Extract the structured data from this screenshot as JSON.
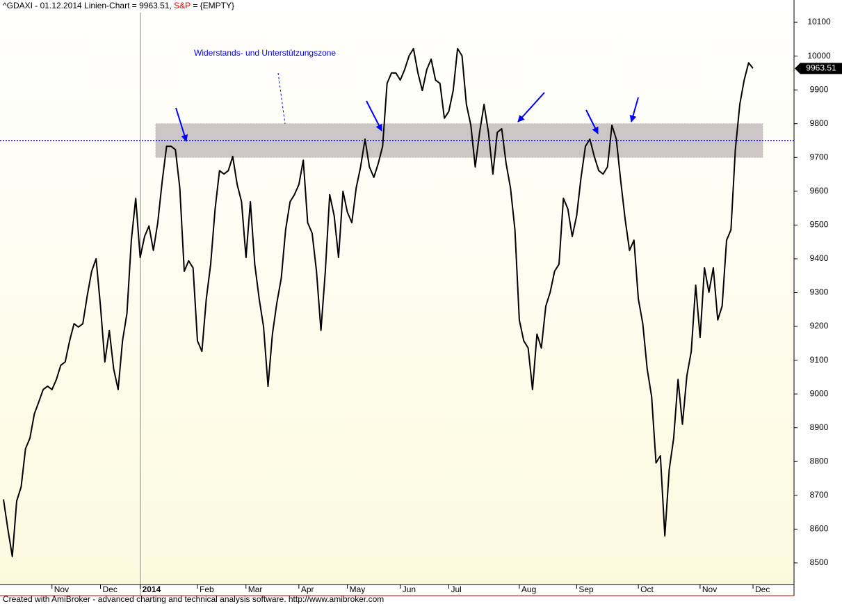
{
  "chart_data": {
    "type": "line",
    "title": "^GDAXI - 01.12.2014 Linien-Chart  =",
    "last_value": 9963.51,
    "separator": ",",
    "indicator_label": "S&P",
    "indicator_value": "= {EMPTY}",
    "annotation": "Widerstands- und Unterstützungszone",
    "zone": [
      9700,
      9800
    ],
    "level": 9750,
    "footer": "Created with AmiBroker - advanced charting and technical analysis software. http://www.amibroker.com",
    "color": "#000000",
    "ylim": [
      8436,
      10166
    ],
    "yticks": [
      8500,
      8600,
      8700,
      8800,
      8900,
      9000,
      9100,
      9200,
      9300,
      9400,
      9500,
      9600,
      9700,
      9800,
      9900,
      10000,
      10100
    ],
    "categories": [
      null,
      null,
      null,
      null,
      null,
      null,
      null,
      null,
      null,
      null,
      null,
      "Nov",
      null,
      null,
      null,
      null,
      null,
      null,
      null,
      null,
      null,
      null,
      "Dec",
      null,
      null,
      null,
      null,
      null,
      null,
      null,
      null,
      "2014",
      null,
      null,
      null,
      null,
      null,
      null,
      null,
      null,
      null,
      null,
      null,
      null,
      "Feb",
      null,
      null,
      null,
      null,
      null,
      null,
      null,
      null,
      null,
      null,
      "Mar",
      null,
      null,
      null,
      null,
      null,
      null,
      null,
      null,
      null,
      null,
      null,
      "Apr",
      null,
      null,
      null,
      null,
      null,
      null,
      null,
      null,
      null,
      null,
      "May",
      null,
      null,
      null,
      null,
      null,
      null,
      null,
      null,
      null,
      null,
      null,
      "Jun",
      null,
      null,
      null,
      null,
      null,
      null,
      null,
      null,
      null,
      null,
      "Jul",
      null,
      null,
      null,
      null,
      null,
      null,
      null,
      null,
      null,
      null,
      null,
      null,
      null,
      null,
      null,
      "Aug",
      null,
      null,
      null,
      null,
      null,
      null,
      null,
      null,
      null,
      null,
      null,
      null,
      "Sep",
      null,
      null,
      null,
      null,
      null,
      null,
      null,
      null,
      null,
      null,
      null,
      null,
      null,
      "Oct",
      null,
      null,
      null,
      null,
      null,
      null,
      null,
      null,
      null,
      null,
      null,
      null,
      null,
      "Nov",
      null,
      null,
      null,
      null,
      null,
      null,
      null,
      null,
      null,
      null,
      null,
      "Dec"
    ],
    "values": [
      8688,
      8600,
      8519,
      8683,
      8725,
      8838,
      8869,
      8941,
      8976,
      9013,
      9023,
      9013,
      9043,
      9085,
      9095,
      9157,
      9208,
      9198,
      9208,
      9291,
      9363,
      9400,
      9260,
      9095,
      9188,
      9074,
      9013,
      9157,
      9239,
      9455,
      9579,
      9404,
      9466,
      9497,
      9425,
      9507,
      9630,
      9733,
      9733,
      9723,
      9610,
      9363,
      9394,
      9373,
      9157,
      9126,
      9281,
      9384,
      9548,
      9661,
      9651,
      9661,
      9703,
      9620,
      9569,
      9404,
      9569,
      9384,
      9281,
      9198,
      9023,
      9177,
      9270,
      9342,
      9486,
      9569,
      9590,
      9620,
      9692,
      9507,
      9476,
      9363,
      9188,
      9363,
      9590,
      9528,
      9404,
      9600,
      9538,
      9507,
      9610,
      9672,
      9754,
      9672,
      9641,
      9682,
      9733,
      9919,
      9950,
      9950,
      9929,
      9960,
      10001,
      10022,
      9950,
      9898,
      9960,
      9991,
      9929,
      9919,
      9816,
      9836,
      9898,
      10022,
      10001,
      9857,
      9795,
      9672,
      9774,
      9857,
      9774,
      9651,
      9774,
      9785,
      9682,
      9610,
      9486,
      9219,
      9157,
      9136,
      9013,
      9177,
      9136,
      9260,
      9301,
      9363,
      9384,
      9579,
      9548,
      9466,
      9528,
      9641,
      9733,
      9754,
      9703,
      9661,
      9651,
      9672,
      9795,
      9754,
      9630,
      9517,
      9425,
      9455,
      9281,
      9208,
      9074,
      8992,
      8796,
      8817,
      8580,
      8776,
      8869,
      9043,
      8910,
      9054,
      9126,
      9322,
      9167,
      9373,
      9301,
      9373,
      9219,
      9260,
      9455,
      9486,
      9723,
      9857,
      9929,
      9980,
      9963.51
    ]
  }
}
